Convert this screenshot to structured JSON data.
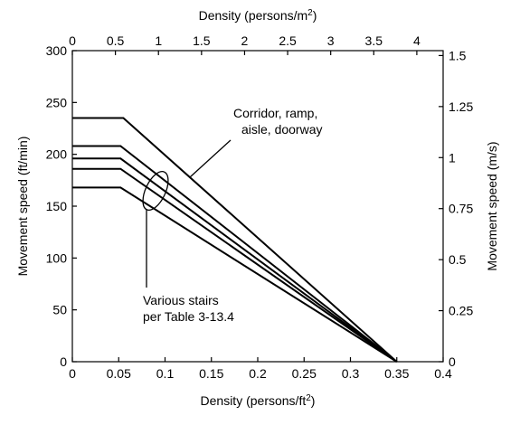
{
  "chart_data": {
    "type": "line",
    "xlabel_bottom": "Density (persons/ft",
    "xlabel_bottom_sup": "2",
    "xlabel_bottom_tail": ")",
    "xlabel_top": "Density (persons/m",
    "xlabel_top_sup": "2",
    "xlabel_top_tail": ")",
    "ylabel_left": "Movement speed (ft/min)",
    "ylabel_right": "Movement speed (m/s)",
    "xlim": [
      0,
      0.4
    ],
    "ylim": [
      0,
      300
    ],
    "x_ticks": [
      "0",
      "0.05",
      "0.1",
      "0.15",
      "0.2",
      "0.25",
      "0.3",
      "0.35",
      "0.4"
    ],
    "y_ticks": [
      "0",
      "50",
      "100",
      "150",
      "200",
      "250",
      "300"
    ],
    "top_ticks": [
      "0",
      "0.5",
      "1",
      "1.5",
      "2",
      "2.5",
      "3",
      "3.5",
      "4"
    ],
    "top_tick_values_m2": [
      0,
      0.5,
      1,
      1.5,
      2,
      2.5,
      3,
      3.5,
      4
    ],
    "right_ticks": [
      "0",
      "0.25",
      "0.5",
      "0.75",
      "1",
      "1.25",
      "1.5"
    ],
    "right_tick_values_ms": [
      0,
      0.25,
      0.5,
      0.75,
      1,
      1.25,
      1.5
    ],
    "series": [
      {
        "name": "Corridor, ramp, aisle, doorway",
        "points": [
          [
            0,
            235
          ],
          [
            0.055,
            235
          ],
          [
            0.35,
            0
          ]
        ]
      },
      {
        "points": [
          [
            0,
            208
          ],
          [
            0.052,
            208
          ],
          [
            0.35,
            0
          ]
        ]
      },
      {
        "points": [
          [
            0,
            196
          ],
          [
            0.052,
            196
          ],
          [
            0.35,
            0
          ]
        ]
      },
      {
        "points": [
          [
            0,
            186
          ],
          [
            0.052,
            186
          ],
          [
            0.35,
            0
          ]
        ]
      },
      {
        "points": [
          [
            0,
            168
          ],
          [
            0.052,
            168
          ],
          [
            0.35,
            0
          ]
        ]
      }
    ],
    "annotations": {
      "corridor_line1": "Corridor, ramp,",
      "corridor_line2": "aisle, doorway",
      "stairs_line1": "Various stairs",
      "stairs_line2": "per Table 3-13.4"
    },
    "grid": false,
    "line_color": "#000000"
  }
}
